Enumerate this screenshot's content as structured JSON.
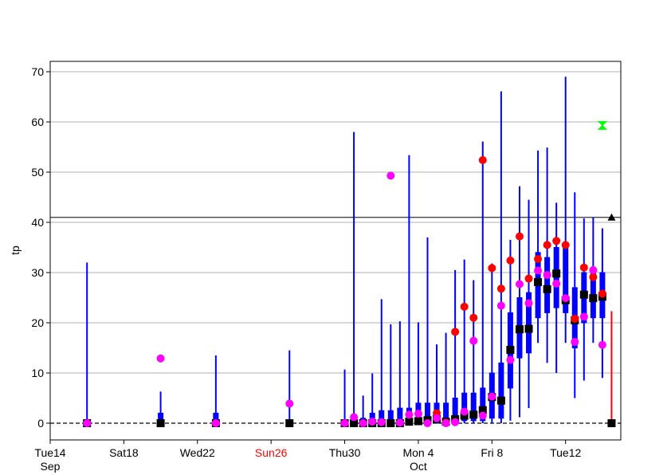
{
  "chart_data": {
    "type": "box-whisker",
    "title": "",
    "xlabel": "",
    "ylabel": "tp",
    "ylim": [
      0,
      72.5
    ],
    "xlim": [
      "2021-09-14",
      "2021-10-15 00:00"
    ],
    "y_ticks": [
      0,
      10,
      20,
      30,
      40,
      50,
      60,
      70
    ],
    "x_ticks": [
      {
        "date": "2021-09-14",
        "label": "Tue14",
        "sublabel": "Sep",
        "color": "#000000"
      },
      {
        "date": "2021-09-18",
        "label": "Sat18",
        "sublabel": "",
        "color": "#000000"
      },
      {
        "date": "2021-09-22",
        "label": "Wed22",
        "sublabel": "",
        "color": "#000000"
      },
      {
        "date": "2021-09-26",
        "label": "Sun26",
        "sublabel": "",
        "color": "#ff0000"
      },
      {
        "date": "2021-09-30",
        "label": "Thu30",
        "sublabel": "",
        "color": "#000000"
      },
      {
        "date": "2021-10-04",
        "label": "Mon 4",
        "sublabel": "Oct",
        "color": "#000000"
      },
      {
        "date": "2021-10-08",
        "label": "Fri 8",
        "sublabel": "",
        "color": "#000000"
      },
      {
        "date": "2021-10-12",
        "label": "Tue12",
        "sublabel": "",
        "color": "#000000"
      }
    ],
    "grid": "horizontal",
    "threshold_line": 41,
    "colors": {
      "box": "#0000ff",
      "median": "#000000",
      "red_marker": "#ff0000",
      "magenta_marker": "#ff00ff",
      "green_marker": "#00ff00",
      "latest_whisker": "#ff0000"
    },
    "boxes": [
      {
        "x": "2021-09-16 00:00",
        "min": 0,
        "q1": 0,
        "median": 0,
        "q3": 0.5,
        "max": 32
      },
      {
        "x": "2021-09-20 00:00",
        "min": 0,
        "q1": 0,
        "median": 0,
        "q3": 2,
        "max": 6.3
      },
      {
        "x": "2021-09-23 00:00",
        "min": 0,
        "q1": 0,
        "median": 0,
        "q3": 2,
        "max": 13.5
      },
      {
        "x": "2021-09-27 00:00",
        "min": 0,
        "q1": 0,
        "median": 0,
        "q3": 0.5,
        "max": 14.5
      },
      {
        "x": "2021-09-30 00:00",
        "min": 0,
        "q1": 0,
        "median": 0,
        "q3": 0.5,
        "max": 10.7
      },
      {
        "x": "2021-09-30 12:00",
        "min": 0,
        "q1": 0,
        "median": 0,
        "q3": 1.5,
        "max": 58
      },
      {
        "x": "2021-10-01 00:00",
        "min": 0,
        "q1": 0,
        "median": 0,
        "q3": 1,
        "max": 5.5
      },
      {
        "x": "2021-10-01 12:00",
        "min": 0,
        "q1": 0,
        "median": 0,
        "q3": 2,
        "max": 9.9
      },
      {
        "x": "2021-10-02 00:00",
        "min": 0,
        "q1": 0,
        "median": 0,
        "q3": 2.5,
        "max": 24.7
      },
      {
        "x": "2021-10-02 12:00",
        "min": 0,
        "q1": 0,
        "median": 0,
        "q3": 2.5,
        "max": 19.7
      },
      {
        "x": "2021-10-03 00:00",
        "min": 0,
        "q1": 0,
        "median": 0,
        "q3": 3,
        "max": 20.3
      },
      {
        "x": "2021-10-03 12:00",
        "min": 0,
        "q1": 0,
        "median": 0.3,
        "q3": 3,
        "max": 53.4
      },
      {
        "x": "2021-10-04 00:00",
        "min": 0,
        "q1": 0,
        "median": 0.4,
        "q3": 4,
        "max": 20.1
      },
      {
        "x": "2021-10-04 12:00",
        "min": 0,
        "q1": 0,
        "median": 0.6,
        "q3": 4,
        "max": 37
      },
      {
        "x": "2021-10-05 00:00",
        "min": 0,
        "q1": 0,
        "median": 0.8,
        "q3": 4,
        "max": 15.7
      },
      {
        "x": "2021-10-05 12:00",
        "min": 0,
        "q1": 0,
        "median": 0.3,
        "q3": 4,
        "max": 18
      },
      {
        "x": "2021-10-06 00:00",
        "min": 0,
        "q1": 0,
        "median": 0.8,
        "q3": 5,
        "max": 30.5
      },
      {
        "x": "2021-10-06 12:00",
        "min": 0,
        "q1": 0.5,
        "median": 1.5,
        "q3": 6,
        "max": 32.6
      },
      {
        "x": "2021-10-07 00:00",
        "min": 0,
        "q1": 0.5,
        "median": 1.7,
        "q3": 6,
        "max": 28.5
      },
      {
        "x": "2021-10-07 12:00",
        "min": 0,
        "q1": 0.5,
        "median": 2.6,
        "q3": 7,
        "max": 56.1
      },
      {
        "x": "2021-10-08 00:00",
        "min": 0,
        "q1": 1,
        "median": 5.2,
        "q3": 10,
        "max": 31.8
      },
      {
        "x": "2021-10-08 12:00",
        "min": 0,
        "q1": 1,
        "median": 4.5,
        "q3": 12,
        "max": 66.1
      },
      {
        "x": "2021-10-09 00:00",
        "min": 0.5,
        "q1": 7,
        "median": 14.6,
        "q3": 22,
        "max": 36.5
      },
      {
        "x": "2021-10-09 12:00",
        "min": 1.2,
        "q1": 13,
        "median": 18.7,
        "q3": 25,
        "max": 47.2
      },
      {
        "x": "2021-10-10 00:00",
        "min": 3,
        "q1": 14,
        "median": 18.8,
        "q3": 26,
        "max": 44.5
      },
      {
        "x": "2021-10-10 12:00",
        "min": 16,
        "q1": 21,
        "median": 28.1,
        "q3": 34,
        "max": 54.3
      },
      {
        "x": "2021-10-11 00:00",
        "min": 12,
        "q1": 22,
        "median": 26.7,
        "q3": 33,
        "max": 54.9
      },
      {
        "x": "2021-10-11 12:00",
        "min": 10,
        "q1": 23,
        "median": 29.8,
        "q3": 35,
        "max": 43.9
      },
      {
        "x": "2021-10-12 00:00",
        "min": 16,
        "q1": 22,
        "median": 24.5,
        "q3": 35,
        "max": 69
      },
      {
        "x": "2021-10-12 12:00",
        "min": 5,
        "q1": 15,
        "median": 20.5,
        "q3": 27,
        "max": 46
      },
      {
        "x": "2021-10-13 00:00",
        "min": 8.5,
        "q1": 20,
        "median": 25.6,
        "q3": 30,
        "max": 40.8
      },
      {
        "x": "2021-10-13 12:00",
        "min": 16,
        "q1": 21,
        "median": 24.9,
        "q3": 30,
        "max": 41
      },
      {
        "x": "2021-10-14 00:00",
        "min": 9,
        "q1": 21,
        "median": 25.2,
        "q3": 30,
        "max": 38.8
      }
    ],
    "red_points": [
      {
        "x": "2021-10-05 00:00",
        "y": 2
      },
      {
        "x": "2021-10-05 12:00",
        "y": 0.1
      },
      {
        "x": "2021-10-06 00:00",
        "y": 18.2
      },
      {
        "x": "2021-10-06 12:00",
        "y": 23.2
      },
      {
        "x": "2021-10-07 00:00",
        "y": 21
      },
      {
        "x": "2021-10-07 12:00",
        "y": 52.4
      },
      {
        "x": "2021-10-08 00:00",
        "y": 30.9
      },
      {
        "x": "2021-10-08 12:00",
        "y": 26.8
      },
      {
        "x": "2021-10-09 00:00",
        "y": 32.4
      },
      {
        "x": "2021-10-09 12:00",
        "y": 37.2
      },
      {
        "x": "2021-10-10 00:00",
        "y": 28.8
      },
      {
        "x": "2021-10-10 12:00",
        "y": 32.7
      },
      {
        "x": "2021-10-11 00:00",
        "y": 35.5
      },
      {
        "x": "2021-10-11 12:00",
        "y": 36.3
      },
      {
        "x": "2021-10-12 00:00",
        "y": 35.5
      },
      {
        "x": "2021-10-12 12:00",
        "y": 20.8
      },
      {
        "x": "2021-10-13 00:00",
        "y": 31
      },
      {
        "x": "2021-10-13 12:00",
        "y": 29.1
      },
      {
        "x": "2021-10-14 00:00",
        "y": 25.8
      }
    ],
    "magenta_points": [
      {
        "x": "2021-09-16 00:00",
        "y": 0
      },
      {
        "x": "2021-09-20 00:00",
        "y": 12.9
      },
      {
        "x": "2021-09-23 00:00",
        "y": 0
      },
      {
        "x": "2021-09-27 00:00",
        "y": 3.9
      },
      {
        "x": "2021-09-30 00:00",
        "y": 0
      },
      {
        "x": "2021-09-30 12:00",
        "y": 1.2
      },
      {
        "x": "2021-10-01 00:00",
        "y": 0
      },
      {
        "x": "2021-10-01 12:00",
        "y": 0.3
      },
      {
        "x": "2021-10-02 00:00",
        "y": 0.2
      },
      {
        "x": "2021-10-02 12:00",
        "y": 49.3
      },
      {
        "x": "2021-10-03 00:00",
        "y": 0.1
      },
      {
        "x": "2021-10-03 12:00",
        "y": 1.7
      },
      {
        "x": "2021-10-04 00:00",
        "y": 1.9
      },
      {
        "x": "2021-10-04 12:00",
        "y": 0
      },
      {
        "x": "2021-10-05 00:00",
        "y": 1
      },
      {
        "x": "2021-10-05 12:00",
        "y": 0
      },
      {
        "x": "2021-10-06 00:00",
        "y": 0.2
      },
      {
        "x": "2021-10-06 12:00",
        "y": 2.3
      },
      {
        "x": "2021-10-07 00:00",
        "y": 16.4
      },
      {
        "x": "2021-10-07 12:00",
        "y": 1.5
      },
      {
        "x": "2021-10-08 00:00",
        "y": 5.3
      },
      {
        "x": "2021-10-08 12:00",
        "y": 23.4
      },
      {
        "x": "2021-10-09 00:00",
        "y": 12.6
      },
      {
        "x": "2021-10-09 12:00",
        "y": 27.7
      },
      {
        "x": "2021-10-10 00:00",
        "y": 23.9
      },
      {
        "x": "2021-10-10 12:00",
        "y": 30.4
      },
      {
        "x": "2021-10-11 00:00",
        "y": 29.5
      },
      {
        "x": "2021-10-11 12:00",
        "y": 27.8
      },
      {
        "x": "2021-10-12 00:00",
        "y": 24.9
      },
      {
        "x": "2021-10-12 12:00",
        "y": 16.2
      },
      {
        "x": "2021-10-13 00:00",
        "y": 21.2
      },
      {
        "x": "2021-10-13 12:00",
        "y": 30.5
      },
      {
        "x": "2021-10-14 00:00",
        "y": 15.6
      }
    ],
    "latest": {
      "x": "2021-10-14 12:00",
      "median": 0,
      "min": 0,
      "max": 22.3
    },
    "green_point": {
      "x": "2021-10-14 00:00",
      "y": 59.3
    },
    "threshold_marker": {
      "x": "2021-10-14 12:00",
      "y": 41
    }
  }
}
